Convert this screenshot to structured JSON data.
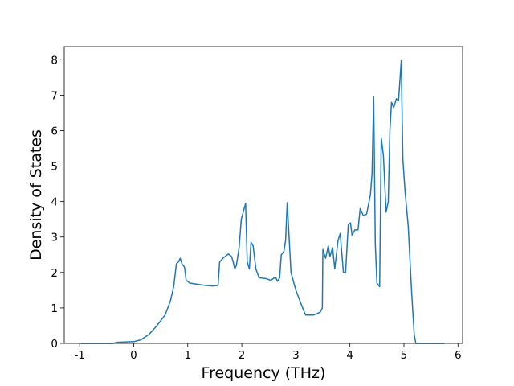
{
  "chart_data": {
    "type": "line",
    "xlabel": "Frequency (THz)",
    "ylabel": "Density of States",
    "color": "#1f77b4",
    "x": [
      -0.98,
      -0.39,
      -0.31,
      0,
      0.13,
      0.28,
      0.43,
      0.58,
      0.68,
      0.74,
      0.79,
      0.83,
      0.86,
      0.89,
      0.94,
      0.97,
      1.04,
      1.25,
      1.37,
      1.46,
      1.52,
      1.56,
      1.59,
      1.65,
      1.75,
      1.81,
      1.84,
      1.87,
      1.9,
      1.95,
      1.99,
      2.07,
      2.1,
      2.14,
      2.17,
      2.21,
      2.26,
      2.32,
      2.44,
      2.54,
      2.6,
      2.63,
      2.66,
      2.7,
      2.73,
      2.78,
      2.81,
      2.84,
      2.91,
      3.0,
      3.1,
      3.18,
      3.33,
      3.45,
      3.49,
      3.5,
      3.55,
      3.6,
      3.63,
      3.68,
      3.72,
      3.78,
      3.82,
      3.88,
      3.92,
      3.97,
      4.01,
      4.04,
      4.09,
      4.15,
      4.19,
      4.25,
      4.31,
      4.38,
      4.41,
      4.44,
      4.47,
      4.5,
      4.55,
      4.58,
      4.62,
      4.67,
      4.71,
      4.74,
      4.77,
      4.81,
      4.86,
      4.9,
      4.95,
      4.98,
      5.02,
      5.08,
      5.14,
      5.19,
      5.22,
      5.75
    ],
    "values": [
      0,
      0,
      0.03,
      0.05,
      0.1,
      0.25,
      0.5,
      0.8,
      1.2,
      1.6,
      2.25,
      2.3,
      2.4,
      2.25,
      2.15,
      1.78,
      1.7,
      1.65,
      1.63,
      1.62,
      1.63,
      1.63,
      2.3,
      2.4,
      2.52,
      2.45,
      2.3,
      2.1,
      2.2,
      2.7,
      3.5,
      3.95,
      2.3,
      2.1,
      2.85,
      2.75,
      2.1,
      1.85,
      1.83,
      1.78,
      1.85,
      1.85,
      1.75,
      1.85,
      2.5,
      2.6,
      2.9,
      3.97,
      2.0,
      1.5,
      1.1,
      0.8,
      0.8,
      0.88,
      1.0,
      2.65,
      2.4,
      2.75,
      2.45,
      2.7,
      2.1,
      2.9,
      3.1,
      2.0,
      2.0,
      3.35,
      3.4,
      3.05,
      3.2,
      3.2,
      3.8,
      3.6,
      3.65,
      4.2,
      4.8,
      6.95,
      2.8,
      1.7,
      1.6,
      5.8,
      5.3,
      3.7,
      4.0,
      6.0,
      6.8,
      6.65,
      6.9,
      6.85,
      7.97,
      5.2,
      4.3,
      3.3,
      1.5,
      0.25,
      0,
      0
    ],
    "xlim": [
      -1.285,
      6.085
    ],
    "xticks": [
      -1,
      0,
      1,
      2,
      3,
      4,
      5,
      6
    ],
    "ylim": [
      0,
      8.37
    ],
    "yticks": [
      0,
      1,
      2,
      3,
      4,
      5,
      6,
      7,
      8
    ]
  }
}
